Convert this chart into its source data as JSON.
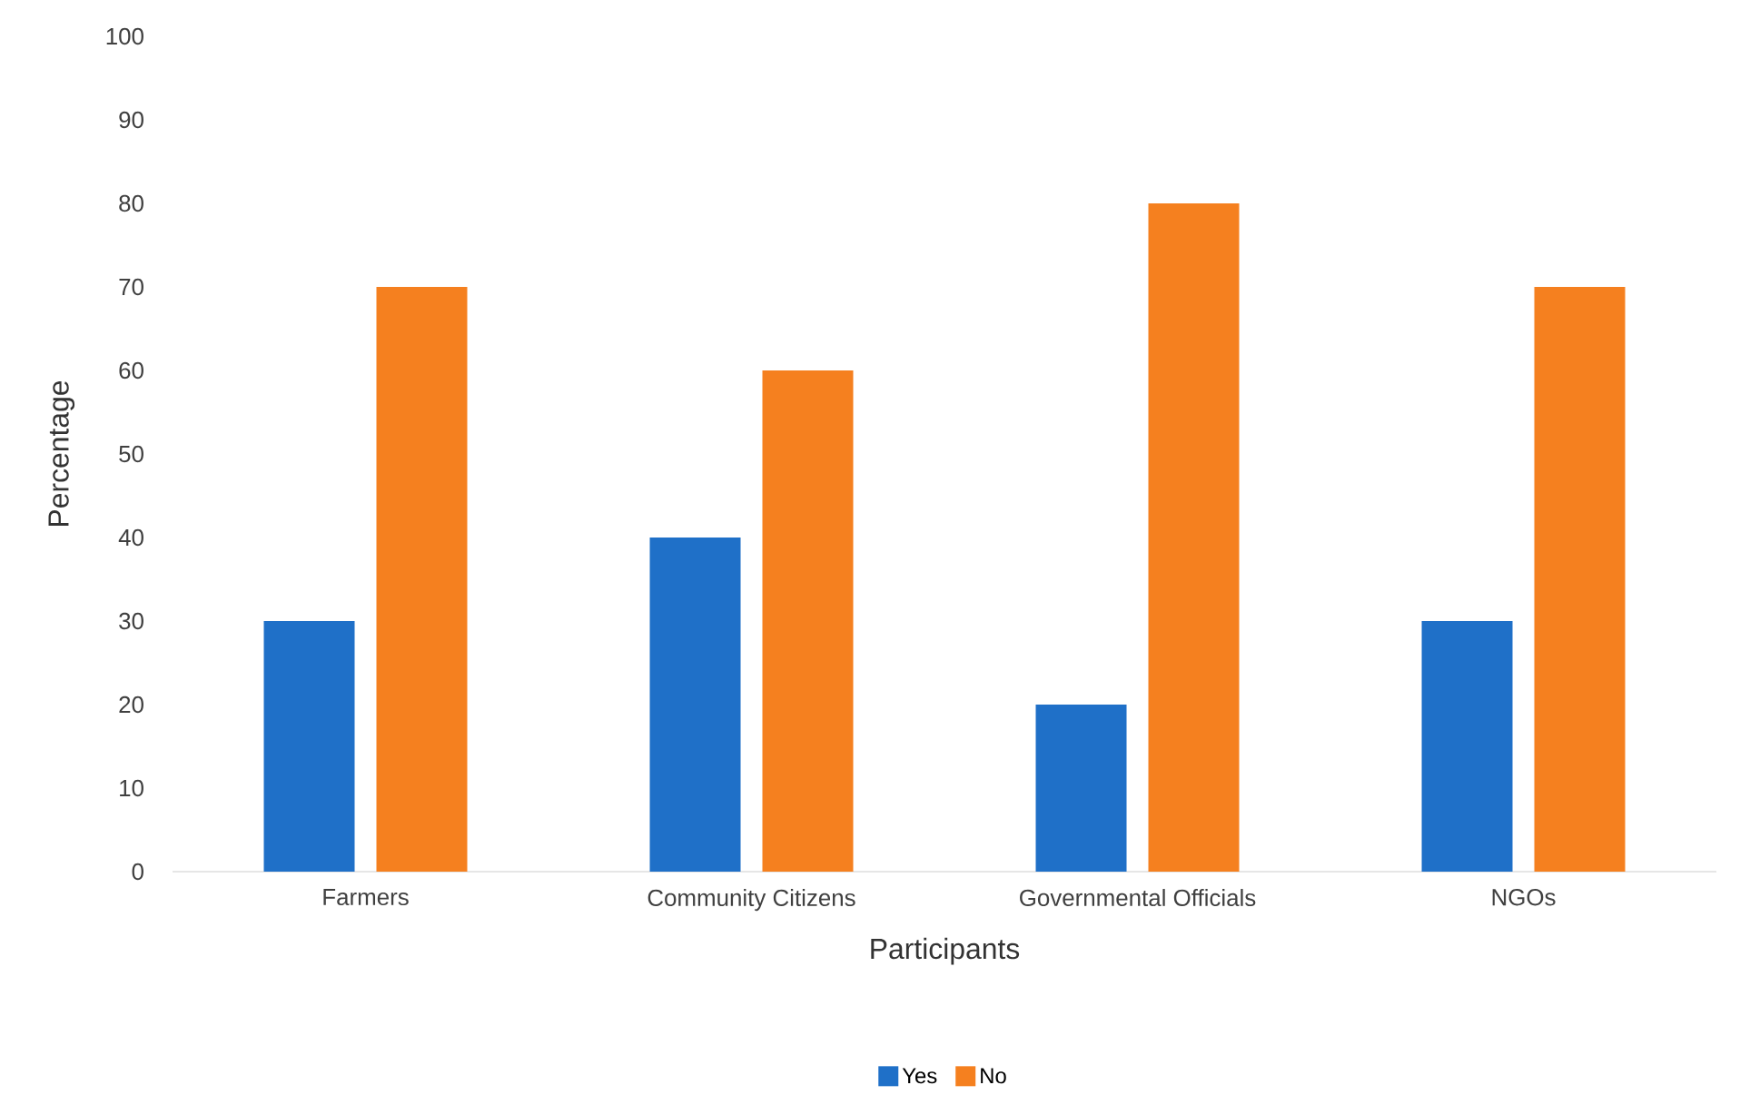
{
  "chart_data": {
    "type": "bar",
    "xlabel": "Participants",
    "ylabel": "Percentage",
    "categories": [
      "Farmers",
      "Community Citizens",
      "Governmental Officials",
      "NGOs"
    ],
    "series": [
      {
        "name": "Yes",
        "color": "#1f70c8",
        "values": [
          30,
          40,
          20,
          30
        ]
      },
      {
        "name": "No",
        "color": "#f5801f",
        "values": [
          70,
          60,
          80,
          70
        ]
      }
    ],
    "ylim": [
      0,
      100
    ],
    "yticks": [
      0,
      10,
      20,
      30,
      40,
      50,
      60,
      70,
      80,
      90,
      100
    ],
    "legend": "bottom"
  }
}
